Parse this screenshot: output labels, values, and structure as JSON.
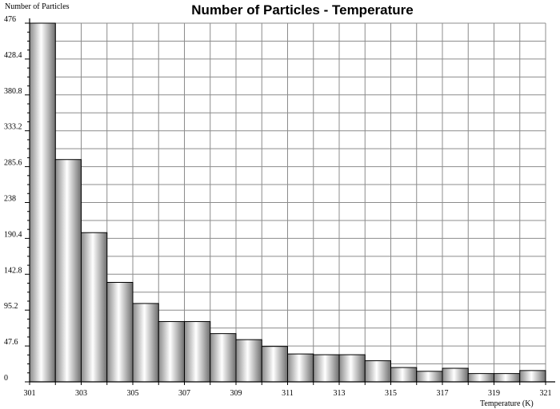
{
  "chart_data": {
    "type": "bar",
    "title": "Number of Particles - Temperature",
    "ylabel": "Number of Particles",
    "xlabel": "Temperature (K)",
    "ylim": [
      0,
      476
    ],
    "xlim": [
      301,
      321
    ],
    "yticks": [
      "0",
      "47.6",
      "95.2",
      "142.8",
      "190.4",
      "238",
      "285.6",
      "333.2",
      "380.8",
      "428.4",
      "476"
    ],
    "xticks": [
      "301",
      "303",
      "305",
      "307",
      "309",
      "311",
      "313",
      "315",
      "317",
      "319",
      "321"
    ],
    "bins": [
      {
        "start": 301,
        "end": 302,
        "value": 476
      },
      {
        "start": 302,
        "end": 303,
        "value": 295
      },
      {
        "start": 303,
        "end": 304,
        "value": 198
      },
      {
        "start": 304,
        "end": 305,
        "value": 132
      },
      {
        "start": 305,
        "end": 306,
        "value": 104
      },
      {
        "start": 306,
        "end": 307,
        "value": 80
      },
      {
        "start": 307,
        "end": 308,
        "value": 80
      },
      {
        "start": 308,
        "end": 309,
        "value": 64
      },
      {
        "start": 309,
        "end": 310,
        "value": 56
      },
      {
        "start": 310,
        "end": 311,
        "value": 47
      },
      {
        "start": 311,
        "end": 312,
        "value": 37
      },
      {
        "start": 312,
        "end": 313,
        "value": 36
      },
      {
        "start": 313,
        "end": 314,
        "value": 36
      },
      {
        "start": 314,
        "end": 315,
        "value": 28
      },
      {
        "start": 315,
        "end": 316,
        "value": 19
      },
      {
        "start": 316,
        "end": 317,
        "value": 14
      },
      {
        "start": 317,
        "end": 318,
        "value": 18
      },
      {
        "start": 318,
        "end": 319,
        "value": 11
      },
      {
        "start": 319,
        "end": 320,
        "value": 11
      },
      {
        "start": 320,
        "end": 321,
        "value": 15
      }
    ],
    "grid": true,
    "colors": {
      "bar_edge": "#000000",
      "bar_light": "#ffffff",
      "bar_dark": "#6e6e6e",
      "grid": "#8c8c8c"
    }
  }
}
